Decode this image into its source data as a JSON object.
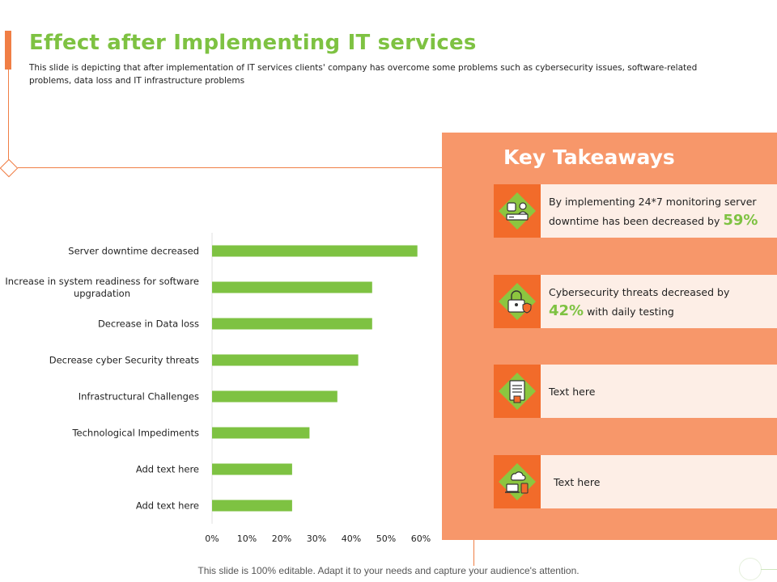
{
  "header": {
    "title": "Effect after Implementing IT services",
    "subtitle": "This slide is depicting that after implementation of IT services clients' company has overcome some problems such as cybersecurity issues, software-related problems, data loss and IT infrastructure problems"
  },
  "chart_data": {
    "type": "bar",
    "orientation": "horizontal",
    "categories": [
      "Server downtime decreased",
      "Increase in system readiness for software upgradation",
      "Decrease in Data loss",
      "Decrease cyber Security threats",
      "Infrastructural Challenges",
      "Technological Impediments",
      "Add text here",
      "Add text here"
    ],
    "category_lines": [
      [
        "Server downtime decreased"
      ],
      [
        "Increase in system readiness for software",
        "upgradation"
      ],
      [
        "Decrease in Data loss"
      ],
      [
        "Decrease cyber Security threats"
      ],
      [
        "Infrastructural Challenges"
      ],
      [
        "Technological Impediments"
      ],
      [
        "Add text here"
      ],
      [
        "Add text here"
      ]
    ],
    "values": [
      0.59,
      0.46,
      0.46,
      0.42,
      0.36,
      0.28,
      0.23,
      0.23
    ],
    "xlim": [
      0,
      0.6
    ],
    "xticks": [
      "0%",
      "10%",
      "20%",
      "30%",
      "40%",
      "50%",
      "60%"
    ],
    "bar_color": "#7ec242",
    "grid": false
  },
  "takeaways": {
    "title": "Key Takeaways",
    "items": [
      {
        "icon": "server-monitoring-icon",
        "text": "By implementing 24*7 monitoring server downtime has been decreased by",
        "highlight": "59%",
        "text_after": ""
      },
      {
        "icon": "security-lock-icon",
        "text": "Cybersecurity threats decreased by",
        "highlight": "42%",
        "text_after": "with daily testing"
      },
      {
        "icon": "document-icon",
        "text": "Text here",
        "highlight": "",
        "text_after": ""
      },
      {
        "icon": "cloud-devices-icon",
        "text": "Text here",
        "highlight": "",
        "text_after": ""
      }
    ]
  },
  "footer": {
    "text": "This slide is 100% editable. Adapt it to your needs and capture your audience's attention."
  },
  "colors": {
    "accent": "#f07e45",
    "panel": "#f7976a",
    "card": "#fdeee6",
    "icon_box": "#f26b2a",
    "green": "#7ec242"
  }
}
